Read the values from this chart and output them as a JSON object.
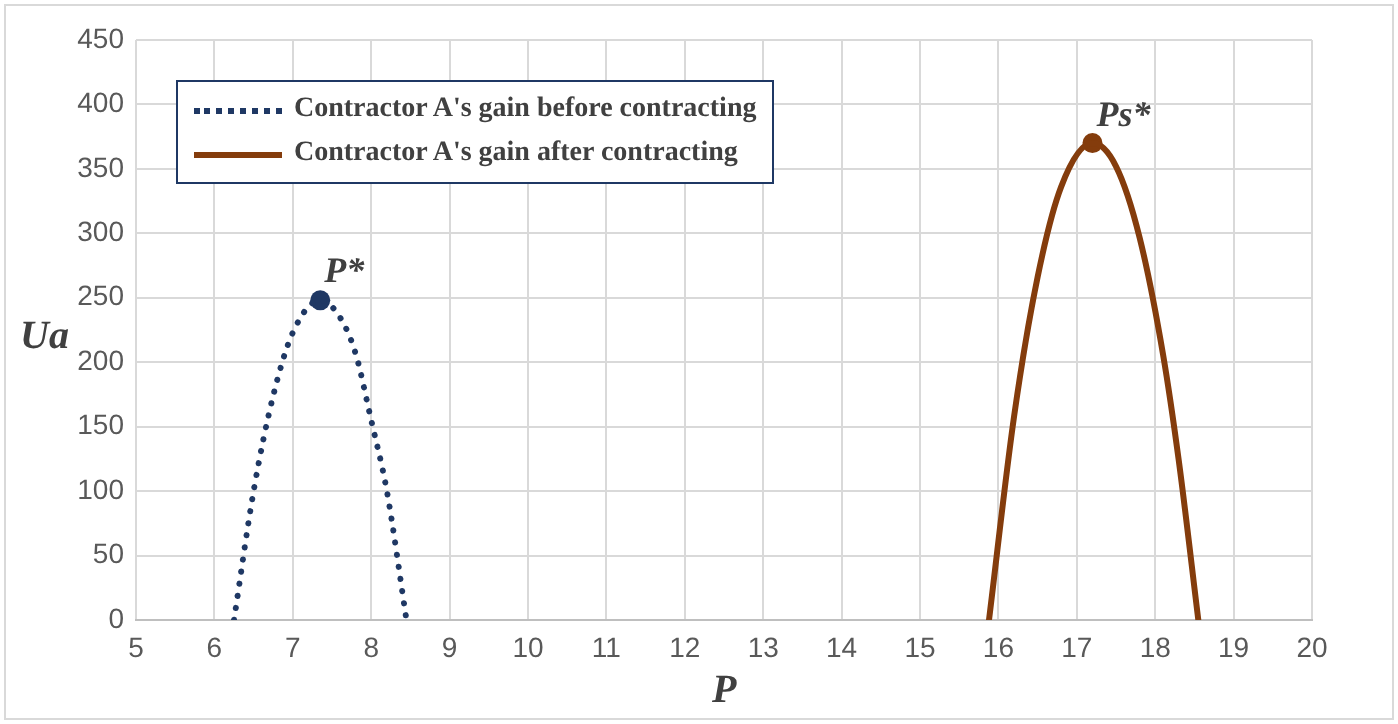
{
  "chart_data": {
    "type": "line",
    "xlabel": "P",
    "ylabel": "Ua",
    "xlim": [
      5,
      20
    ],
    "xticks": [
      5,
      6,
      7,
      8,
      9,
      10,
      11,
      12,
      13,
      14,
      15,
      16,
      17,
      18,
      19,
      20
    ],
    "ylim": [
      0,
      450
    ],
    "yticks": [
      0,
      50,
      100,
      150,
      200,
      250,
      300,
      350,
      400,
      450
    ],
    "grid": true,
    "legend": "top left",
    "marker": "none",
    "series": [
      {
        "name": "Contractor A's gain before contracting",
        "color": "#1f3864",
        "line_style": "dotted",
        "x": [
          6.25,
          6.5,
          6.75,
          7.0,
          7.35,
          7.6,
          7.8,
          8.0,
          8.2,
          8.45
        ],
        "values": [
          0,
          100,
          174,
          223,
          248,
          235,
          207,
          155,
          100,
          0
        ]
      },
      {
        "name": "Contractor A's gain after contracting",
        "color": "#843c0c",
        "line_style": "solid",
        "x": [
          15.88,
          16.2,
          16.5,
          16.8,
          17.2,
          17.5,
          17.8,
          18.1,
          18.3,
          18.55
        ],
        "values": [
          0,
          158,
          266,
          336,
          370,
          352,
          297,
          206,
          124,
          0
        ]
      },
      {
        "type": "scatter",
        "color": "#1f3864",
        "marker": "circle",
        "x": [
          7.35
        ],
        "values": [
          248
        ]
      },
      {
        "type": "scatter",
        "color": "#843c0c",
        "marker": "circle",
        "x": [
          17.2
        ],
        "values": [
          370
        ]
      }
    ],
    "annotations": [
      {
        "text": "P*",
        "x": 7.35,
        "y": 248
      },
      {
        "text": "Ps*",
        "x": 17.2,
        "y": 370
      }
    ]
  }
}
